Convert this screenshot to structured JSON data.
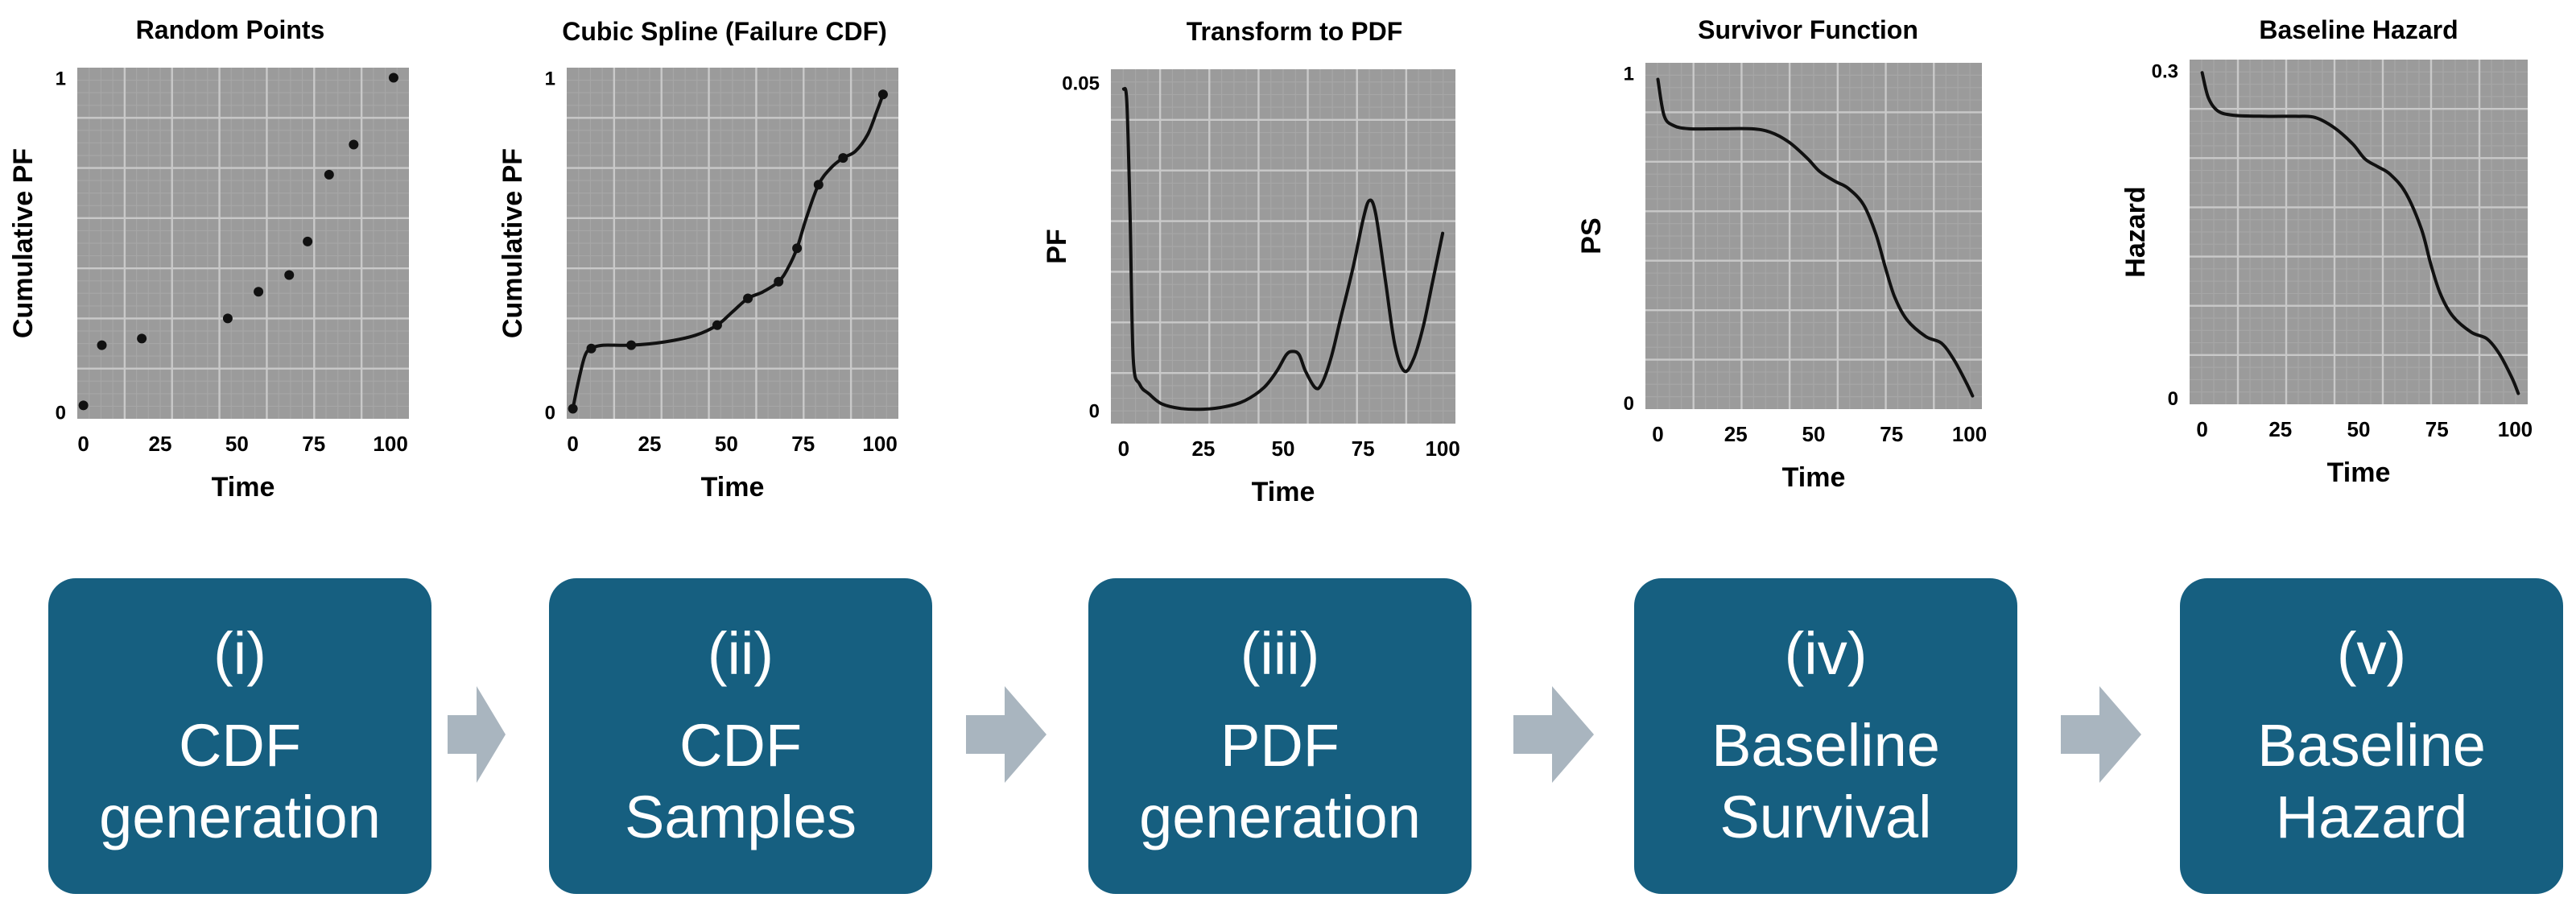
{
  "panels": [
    {
      "title": "Random Points",
      "chart_data": {
        "type": "scatter",
        "title": "Random Points",
        "xlabel": "Time",
        "ylabel": "Cumulative PF",
        "xlim": [
          -2,
          106
        ],
        "ylim": [
          -0.02,
          1.03
        ],
        "xticks": [
          0,
          25,
          50,
          75,
          100
        ],
        "yticks": [
          0,
          1
        ],
        "grid": true,
        "x": [
          0,
          6,
          19,
          47,
          57,
          67,
          73,
          80,
          88,
          101
        ],
        "y": [
          0.02,
          0.2,
          0.22,
          0.28,
          0.36,
          0.41,
          0.51,
          0.71,
          0.8,
          1.0
        ],
        "line": []
      }
    },
    {
      "title": "Cubic Spline (Failure CDF)",
      "chart_data": {
        "type": "line",
        "title": "Cubic Spline (Failure CDF)",
        "xlabel": "Time",
        "ylabel": "Cumulative PF",
        "xlim": [
          -2,
          106
        ],
        "ylim": [
          -0.02,
          1.03
        ],
        "xticks": [
          0,
          25,
          50,
          75,
          100
        ],
        "yticks": [
          0,
          1
        ],
        "grid": true,
        "x": [
          0,
          6,
          19,
          47,
          57,
          67,
          73,
          80,
          88,
          101
        ],
        "y": [
          0.01,
          0.19,
          0.2,
          0.26,
          0.34,
          0.39,
          0.49,
          0.68,
          0.76,
          0.95
        ],
        "line": [
          [
            0,
            0.01
          ],
          [
            2,
            0.1
          ],
          [
            4,
            0.17
          ],
          [
            6,
            0.19
          ],
          [
            10,
            0.2
          ],
          [
            19,
            0.2
          ],
          [
            30,
            0.21
          ],
          [
            40,
            0.23
          ],
          [
            47,
            0.26
          ],
          [
            52,
            0.3
          ],
          [
            57,
            0.34
          ],
          [
            62,
            0.36
          ],
          [
            67,
            0.39
          ],
          [
            70,
            0.43
          ],
          [
            73,
            0.49
          ],
          [
            76,
            0.58
          ],
          [
            80,
            0.68
          ],
          [
            84,
            0.73
          ],
          [
            88,
            0.76
          ],
          [
            92,
            0.78
          ],
          [
            96,
            0.83
          ],
          [
            99,
            0.9
          ],
          [
            101,
            0.95
          ]
        ]
      }
    },
    {
      "title": "Transform to PDF",
      "chart_data": {
        "type": "line",
        "title": "Transform to PDF",
        "xlabel": "Time",
        "ylabel": "PF",
        "xlim": [
          -4,
          104
        ],
        "ylim": [
          -0.002,
          0.052
        ],
        "xticks": [
          0,
          25,
          50,
          75,
          100
        ],
        "yticks": [
          0,
          0.05
        ],
        "ytick_labels": [
          "0",
          "0.05"
        ],
        "grid": true,
        "x": [],
        "y": [],
        "line": [
          [
            0,
            0.049
          ],
          [
            1,
            0.047
          ],
          [
            2,
            0.03
          ],
          [
            3,
            0.008
          ],
          [
            5,
            0.004
          ],
          [
            8,
            0.0025
          ],
          [
            12,
            0.001
          ],
          [
            18,
            0.0003
          ],
          [
            25,
            0.0002
          ],
          [
            32,
            0.0006
          ],
          [
            38,
            0.0015
          ],
          [
            44,
            0.0035
          ],
          [
            48,
            0.006
          ],
          [
            51,
            0.0085
          ],
          [
            53,
            0.009
          ],
          [
            55,
            0.0085
          ],
          [
            57,
            0.006
          ],
          [
            60,
            0.0035
          ],
          [
            62,
            0.004
          ],
          [
            65,
            0.008
          ],
          [
            68,
            0.014
          ],
          [
            72,
            0.022
          ],
          [
            75,
            0.029
          ],
          [
            77,
            0.032
          ],
          [
            79,
            0.03
          ],
          [
            82,
            0.02
          ],
          [
            85,
            0.01
          ],
          [
            88,
            0.006
          ],
          [
            91,
            0.008
          ],
          [
            94,
            0.013
          ],
          [
            97,
            0.02
          ],
          [
            100,
            0.027
          ]
        ]
      }
    },
    {
      "title": "Survivor Function",
      "chart_data": {
        "type": "line",
        "title": "Survivor Function",
        "xlabel": "Time",
        "ylabel": "PS",
        "xlim": [
          -4,
          104
        ],
        "ylim": [
          -0.02,
          1.03
        ],
        "xticks": [
          0,
          25,
          50,
          75,
          100
        ],
        "yticks": [
          0,
          1
        ],
        "grid": true,
        "x": [],
        "y": [],
        "line": [
          [
            0,
            0.98
          ],
          [
            2,
            0.87
          ],
          [
            5,
            0.84
          ],
          [
            10,
            0.83
          ],
          [
            20,
            0.83
          ],
          [
            30,
            0.83
          ],
          [
            36,
            0.82
          ],
          [
            42,
            0.79
          ],
          [
            48,
            0.74
          ],
          [
            52,
            0.7
          ],
          [
            57,
            0.67
          ],
          [
            61,
            0.65
          ],
          [
            66,
            0.6
          ],
          [
            70,
            0.51
          ],
          [
            73,
            0.41
          ],
          [
            76,
            0.32
          ],
          [
            80,
            0.25
          ],
          [
            86,
            0.2
          ],
          [
            91,
            0.18
          ],
          [
            95,
            0.13
          ],
          [
            99,
            0.06
          ],
          [
            101,
            0.02
          ]
        ]
      }
    },
    {
      "title": "Baseline Hazard",
      "chart_data": {
        "type": "line",
        "title": "Baseline Hazard",
        "xlabel": "Time",
        "ylabel": "Hazard",
        "xlim": [
          -4,
          104
        ],
        "ylim": [
          -0.006,
          0.31
        ],
        "xticks": [
          0,
          25,
          50,
          75,
          100
        ],
        "yticks": [
          0,
          0.3
        ],
        "ytick_labels": [
          "0",
          "0.3"
        ],
        "grid": true,
        "x": [],
        "y": [],
        "line": [
          [
            0,
            0.298
          ],
          [
            2,
            0.275
          ],
          [
            5,
            0.263
          ],
          [
            10,
            0.259
          ],
          [
            20,
            0.258
          ],
          [
            30,
            0.258
          ],
          [
            36,
            0.257
          ],
          [
            42,
            0.248
          ],
          [
            48,
            0.233
          ],
          [
            52,
            0.219
          ],
          [
            56,
            0.212
          ],
          [
            60,
            0.205
          ],
          [
            65,
            0.188
          ],
          [
            70,
            0.155
          ],
          [
            73,
            0.123
          ],
          [
            76,
            0.096
          ],
          [
            80,
            0.075
          ],
          [
            86,
            0.06
          ],
          [
            91,
            0.054
          ],
          [
            95,
            0.04
          ],
          [
            99,
            0.018
          ],
          [
            101,
            0.004
          ]
        ]
      }
    }
  ],
  "steps": [
    {
      "number": "(i)",
      "lines": [
        "CDF",
        "generation"
      ]
    },
    {
      "number": "(ii)",
      "lines": [
        "CDF",
        "Samples"
      ]
    },
    {
      "number": "(iii)",
      "lines": [
        "PDF",
        "generation"
      ]
    },
    {
      "number": "(iv)",
      "lines": [
        "Baseline",
        "Survival"
      ]
    },
    {
      "number": "(v)",
      "lines": [
        "Baseline",
        "Hazard"
      ]
    }
  ],
  "colors": {
    "plot_bg": "#9b9b9b",
    "grid": "#c9c9c9",
    "curve": "#111111",
    "box": "#165f80",
    "box_text": "#ffffff",
    "arrow": "#a9b5bf",
    "text": "#000000"
  }
}
